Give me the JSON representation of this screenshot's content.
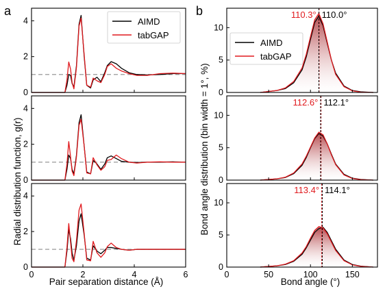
{
  "panel_labels": {
    "a": "a",
    "b": "b"
  },
  "colors": {
    "aimd": "#000000",
    "tabgap": "#e0191d",
    "ref": "#8c8c8c",
    "fill_dark": "#a31d22",
    "fill_light": "#ffffff"
  },
  "chart_data": [
    {
      "type": "line",
      "xlabel": "Pair separation distance (Å)",
      "ylabel": "Radial distribution function, g(r)",
      "xlim": [
        0,
        6
      ],
      "ylim": [
        0,
        4.7
      ],
      "xticks": [
        "0",
        "2",
        "4",
        "6"
      ],
      "yticks": [
        "0",
        "2",
        "4"
      ],
      "reference_line": 1,
      "legend": {
        "placement": "top-right",
        "entries": [
          "AIMD",
          "tabGAP"
        ]
      },
      "panels": [
        {
          "series": [
            {
              "name": "AIMD",
              "x": [
                0,
                1.3,
                1.38,
                1.45,
                1.52,
                1.58,
                1.65,
                1.75,
                1.85,
                1.93,
                2.05,
                2.15,
                2.3,
                2.4,
                2.55,
                2.7,
                2.85,
                2.95,
                3.1,
                3.3,
                3.5,
                3.8,
                4.1,
                4.5,
                5,
                5.5,
                6
              ],
              "y": [
                0,
                0,
                0.4,
                1.0,
                0.95,
                0.5,
                0.3,
                1.5,
                3.8,
                4.3,
                2.0,
                0.4,
                0.25,
                0.7,
                0.85,
                0.6,
                1.1,
                1.5,
                1.72,
                1.6,
                1.35,
                1.1,
                1.0,
                0.98,
                1.0,
                1.05,
                1.05
              ]
            },
            {
              "name": "tabGAP",
              "x": [
                0,
                1.3,
                1.38,
                1.45,
                1.52,
                1.58,
                1.65,
                1.75,
                1.85,
                1.93,
                2.05,
                2.15,
                2.3,
                2.4,
                2.55,
                2.7,
                2.85,
                2.95,
                3.1,
                3.3,
                3.5,
                3.8,
                4.1,
                4.5,
                5,
                5.5,
                6
              ],
              "y": [
                0,
                0,
                0.7,
                1.7,
                1.3,
                0.55,
                0.2,
                1.4,
                3.7,
                4.15,
                2.1,
                0.4,
                0.3,
                0.8,
                0.65,
                0.55,
                1.0,
                1.45,
                1.6,
                1.35,
                1.2,
                1.05,
                0.95,
                0.95,
                1.05,
                1.08,
                1.05
              ]
            }
          ]
        },
        {
          "series": [
            {
              "name": "AIMD",
              "x": [
                0,
                1.3,
                1.38,
                1.45,
                1.52,
                1.58,
                1.65,
                1.75,
                1.85,
                1.93,
                2.05,
                2.15,
                2.3,
                2.4,
                2.55,
                2.7,
                2.85,
                2.95,
                3.1,
                3.3,
                3.5,
                3.8,
                4.1,
                4.5,
                5,
                5.5,
                6
              ],
              "y": [
                0,
                0,
                0.6,
                1.4,
                1.2,
                0.6,
                0.35,
                1.4,
                3.2,
                3.65,
                1.9,
                0.45,
                0.35,
                1.1,
                0.9,
                0.6,
                0.9,
                1.25,
                1.35,
                1.2,
                1.05,
                1.0,
                0.98,
                1.0,
                1.0,
                1.02,
                1.0
              ]
            },
            {
              "name": "tabGAP",
              "x": [
                0,
                1.3,
                1.38,
                1.45,
                1.52,
                1.58,
                1.65,
                1.75,
                1.85,
                1.93,
                2.05,
                2.15,
                2.3,
                2.4,
                2.55,
                2.7,
                2.85,
                2.95,
                3.1,
                3.3,
                3.5,
                3.8,
                4.1,
                4.5,
                5,
                5.5,
                6
              ],
              "y": [
                0,
                0,
                0.9,
                2.15,
                1.3,
                0.5,
                0.25,
                1.3,
                3.05,
                3.4,
                1.9,
                0.4,
                0.35,
                1.25,
                0.85,
                0.55,
                0.75,
                1.1,
                1.15,
                1.4,
                1.2,
                1.0,
                0.95,
                1.0,
                1.02,
                1.0,
                1.0
              ]
            }
          ]
        },
        {
          "series": [
            {
              "name": "AIMD",
              "x": [
                0,
                1.3,
                1.38,
                1.45,
                1.52,
                1.58,
                1.65,
                1.75,
                1.85,
                1.93,
                2.05,
                2.15,
                2.3,
                2.4,
                2.55,
                2.7,
                2.85,
                2.95,
                3.1,
                3.3,
                3.5,
                3.8,
                4.1,
                4.5,
                5,
                5.5,
                6
              ],
              "y": [
                0,
                0,
                0.9,
                2.1,
                1.6,
                0.8,
                0.4,
                1.2,
                2.6,
                3.0,
                1.8,
                0.5,
                0.4,
                1.2,
                0.9,
                0.75,
                0.95,
                1.1,
                1.1,
                1.05,
                1.0,
                0.95,
                1.0,
                1.0,
                1.0,
                1.0,
                1.0
              ]
            },
            {
              "name": "tabGAP",
              "x": [
                0,
                1.3,
                1.38,
                1.45,
                1.52,
                1.58,
                1.65,
                1.75,
                1.85,
                1.93,
                2.05,
                2.15,
                2.3,
                2.4,
                2.55,
                2.7,
                2.85,
                2.95,
                3.1,
                3.3,
                3.5,
                3.8,
                4.1,
                4.5,
                5,
                5.5,
                6
              ],
              "y": [
                0,
                0,
                1.1,
                2.45,
                1.4,
                0.5,
                0.3,
                1.5,
                3.2,
                3.55,
                1.9,
                0.4,
                0.35,
                1.45,
                0.8,
                0.55,
                0.8,
                1.15,
                1.35,
                1.1,
                1.0,
                0.95,
                1.0,
                1.0,
                1.0,
                1.0,
                1.0
              ]
            }
          ]
        }
      ]
    },
    {
      "type": "area",
      "xlabel": "Bond angle (°)",
      "ylabel": "Bond angle distribution (bin width = 1°, %)",
      "xlim": [
        0,
        180
      ],
      "ylim": [
        0,
        13
      ],
      "xticks": [
        "0",
        "50",
        "100",
        "150"
      ],
      "yticks": [
        "0",
        "5",
        "10"
      ],
      "legend": {
        "placement": "top-left",
        "entries": [
          "AIMD",
          "tabGAP"
        ]
      },
      "panels": [
        {
          "angle_labels": {
            "tabGAP": "110.3°",
            "AIMD": "110.0°"
          },
          "mean_angles": {
            "tabGAP": 110.3,
            "AIMD": 110.0
          },
          "series": [
            {
              "name": "AIMD",
              "x": [
                40,
                60,
                70,
                80,
                90,
                95,
                100,
                105,
                110,
                115,
                120,
                125,
                130,
                140,
                150,
                160,
                175
              ],
              "y": [
                0,
                0.3,
                0.6,
                1.5,
                3.5,
                5.5,
                8.2,
                10.8,
                11.8,
                10.3,
                7.6,
                5.0,
                3.0,
                1.0,
                0.3,
                0.1,
                0
              ]
            },
            {
              "name": "tabGAP",
              "x": [
                40,
                60,
                70,
                80,
                90,
                95,
                100,
                105,
                110,
                115,
                120,
                125,
                130,
                140,
                150,
                160,
                175
              ],
              "y": [
                0,
                0.3,
                0.7,
                1.7,
                3.8,
                5.9,
                8.6,
                11.2,
                12.2,
                10.6,
                7.8,
                5.0,
                2.8,
                0.9,
                0.25,
                0.05,
                0
              ]
            }
          ]
        },
        {
          "angle_labels": {
            "tabGAP": "112.6°",
            "AIMD": "112.1°"
          },
          "mean_angles": {
            "tabGAP": 112.6,
            "AIMD": 112.1
          },
          "series": [
            {
              "name": "AIMD",
              "x": [
                40,
                60,
                70,
                80,
                90,
                95,
                100,
                105,
                110,
                115,
                120,
                125,
                130,
                140,
                150,
                160,
                175
              ],
              "y": [
                0,
                0.2,
                0.4,
                1.0,
                2.3,
                3.5,
                5.0,
                6.4,
                7.2,
                6.8,
                5.6,
                4.0,
                2.5,
                0.9,
                0.3,
                0.1,
                0
              ]
            },
            {
              "name": "tabGAP",
              "x": [
                40,
                60,
                70,
                80,
                90,
                95,
                100,
                105,
                110,
                115,
                120,
                125,
                130,
                140,
                150,
                160,
                175
              ],
              "y": [
                0,
                0.2,
                0.45,
                1.1,
                2.5,
                3.7,
                5.1,
                6.5,
                7.4,
                7.0,
                5.6,
                3.9,
                2.4,
                0.8,
                0.25,
                0.08,
                0
              ]
            }
          ]
        },
        {
          "angle_labels": {
            "tabGAP": "113.4°",
            "AIMD": "114.1°"
          },
          "mean_angles": {
            "tabGAP": 113.4,
            "AIMD": 114.1
          },
          "series": [
            {
              "name": "AIMD",
              "x": [
                40,
                60,
                70,
                80,
                90,
                95,
                100,
                105,
                110,
                115,
                120,
                125,
                130,
                140,
                150,
                160,
                175
              ],
              "y": [
                0,
                0.2,
                0.4,
                0.9,
                2.0,
                3.0,
                4.2,
                5.4,
                6.0,
                6.2,
                5.4,
                4.1,
                2.8,
                1.1,
                0.4,
                0.15,
                0
              ]
            },
            {
              "name": "tabGAP",
              "x": [
                40,
                60,
                70,
                80,
                90,
                95,
                100,
                105,
                110,
                115,
                120,
                125,
                130,
                140,
                150,
                160,
                175
              ],
              "y": [
                0,
                0.2,
                0.45,
                1.0,
                2.2,
                3.2,
                4.5,
                5.7,
                6.3,
                6.1,
                5.2,
                3.9,
                2.6,
                1.0,
                0.35,
                0.12,
                0
              ]
            }
          ]
        }
      ]
    }
  ]
}
